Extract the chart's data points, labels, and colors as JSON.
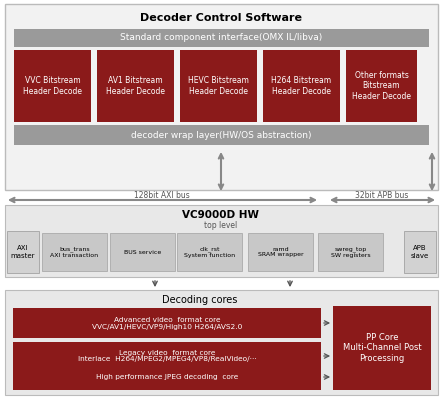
{
  "title": "Decoder Control Software",
  "std_interface": "Standard component interface(OMX IL/libva)",
  "wrap_layer": "decoder wrap layer(HW/OS abstraction)",
  "decoder_boxes": [
    "VVC Bitstream\nHeader Decode",
    "AV1 Bitstream\nHeader Decode",
    "HEVC Bitstream\nHeader Decode",
    "H264 Bitstream\nHeader Decode",
    "Other formats\nBitstream\nHeader Decode"
  ],
  "hw_title": "VC9000D HW",
  "hw_subtitle": "top level",
  "axi_bus_label": "128bit AXI bus",
  "apb_bus_label": "32bit APB bus",
  "axi_master": "AXI\nmaster",
  "apb_slave": "APB\nslave",
  "hw_blocks": [
    "bus_trans\nAXI transaction",
    "BUS service",
    "clk_rst\nSystem function",
    "ramd\nSRAM wrapper",
    "swreg_top\nSW registers"
  ],
  "decode_title": "Decoding cores",
  "decode_cores": [
    "Advanced video  format core\nVVC/AV1/HEVC/VP9/High10 H264/AVS2.0",
    "Legacy video  format core\nInterlace  H264/MPEG2/MPEG4/VP8/RealVideo/···",
    "High performance JPEG decoding  core"
  ],
  "pp_core": "PP Core\nMulti-Channel Post\nProcessing",
  "color_red": "#8b1a1a",
  "color_gray_bar": "#9a9a9a",
  "color_gray_box": "#c0c0c0",
  "color_bg_outer": "#f0f0f0",
  "color_bg_hw": "#e6e6e6",
  "color_border": "#bbbbbb",
  "color_arrow": "#888888",
  "color_arrow_dark": "#555555"
}
